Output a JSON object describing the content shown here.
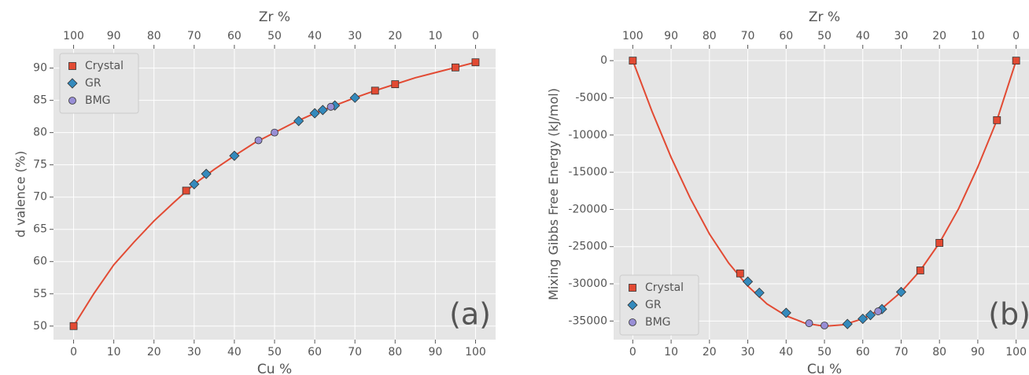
{
  "chart_data": [
    {
      "type": "scatter",
      "xlabel": "Cu %",
      "ylabel": "d valence (%)",
      "x2label": "Zr %",
      "annotation": "(a)",
      "xlim": [
        -5,
        105
      ],
      "xticks": [
        0,
        10,
        20,
        30,
        40,
        50,
        60,
        70,
        80,
        90,
        100
      ],
      "x2lim": [
        105,
        -5
      ],
      "x2ticks": [
        100,
        90,
        80,
        70,
        60,
        50,
        40,
        30,
        20,
        10,
        0
      ],
      "ylim": [
        47.9,
        93
      ],
      "yticks": [
        50,
        55,
        60,
        65,
        70,
        75,
        80,
        85,
        90
      ],
      "grid": true,
      "legend": "upper left",
      "fit": {
        "color": "#e24a33",
        "x": [
          0,
          5,
          10,
          15,
          20,
          25,
          30,
          35,
          40,
          45,
          50,
          55,
          60,
          65,
          70,
          75,
          80,
          85,
          90,
          95,
          100
        ],
        "values": [
          50,
          55,
          59.5,
          63,
          66.3,
          69.2,
          72,
          74.3,
          76.4,
          78.4,
          80,
          81.6,
          83,
          84.2,
          85.4,
          86.5,
          87.5,
          88.5,
          89.3,
          90.1,
          90.9
        ]
      },
      "series": [
        {
          "name": "Crystal",
          "color": "#e24a33",
          "marker": "square",
          "x": [
            0,
            28,
            75,
            80,
            95,
            100
          ],
          "values": [
            50,
            71,
            86.5,
            87.5,
            90.1,
            90.9
          ]
        },
        {
          "name": "GR",
          "color": "#348abd",
          "marker": "diamond",
          "x": [
            30,
            33,
            40,
            56,
            60,
            62,
            65,
            70
          ],
          "values": [
            72,
            73.6,
            76.4,
            81.8,
            83,
            83.5,
            84.2,
            85.4
          ]
        },
        {
          "name": "BMG",
          "color": "#988ed5",
          "marker": "circle",
          "x": [
            46,
            50,
            64
          ],
          "values": [
            78.8,
            80,
            84
          ]
        }
      ]
    },
    {
      "type": "scatter",
      "xlabel": "Cu %",
      "ylabel": "Mixing Gibbs Free Energy (kJ/mol)",
      "x2label": "Zr %",
      "annotation": "(b)",
      "xlim": [
        -5,
        105
      ],
      "xticks": [
        0,
        10,
        20,
        30,
        40,
        50,
        60,
        70,
        80,
        90,
        100
      ],
      "x2lim": [
        105,
        -5
      ],
      "x2ticks": [
        100,
        90,
        80,
        70,
        60,
        50,
        40,
        30,
        20,
        10,
        0
      ],
      "ylim": [
        -37500,
        1600
      ],
      "yticks": [
        0,
        -5000,
        -10000,
        -15000,
        -20000,
        -25000,
        -30000,
        -35000
      ],
      "grid": true,
      "legend": "lower left",
      "fit": {
        "color": "#e24a33",
        "x": [
          0,
          5,
          10,
          15,
          20,
          25,
          30,
          35,
          40,
          45,
          50,
          55,
          60,
          65,
          70,
          75,
          80,
          85,
          90,
          95,
          100
        ],
        "values": [
          0,
          -6800,
          -13000,
          -18500,
          -23300,
          -27200,
          -30300,
          -32700,
          -34300,
          -35300,
          -35700,
          -35500,
          -34700,
          -33300,
          -31100,
          -28200,
          -24500,
          -19900,
          -14300,
          -8000,
          0
        ]
      },
      "series": [
        {
          "name": "Crystal",
          "color": "#e24a33",
          "marker": "square",
          "x": [
            0,
            28,
            75,
            80,
            95,
            100
          ],
          "values": [
            0,
            -28600,
            -28200,
            -24500,
            -8000,
            0
          ]
        },
        {
          "name": "GR",
          "color": "#348abd",
          "marker": "diamond",
          "x": [
            30,
            33,
            40,
            56,
            60,
            62,
            65,
            70
          ],
          "values": [
            -29700,
            -31200,
            -33900,
            -35400,
            -34700,
            -34200,
            -33400,
            -31100
          ]
        },
        {
          "name": "BMG",
          "color": "#988ed5",
          "marker": "circle",
          "x": [
            46,
            50,
            64
          ],
          "values": [
            -35300,
            -35600,
            -33700
          ]
        }
      ]
    }
  ]
}
